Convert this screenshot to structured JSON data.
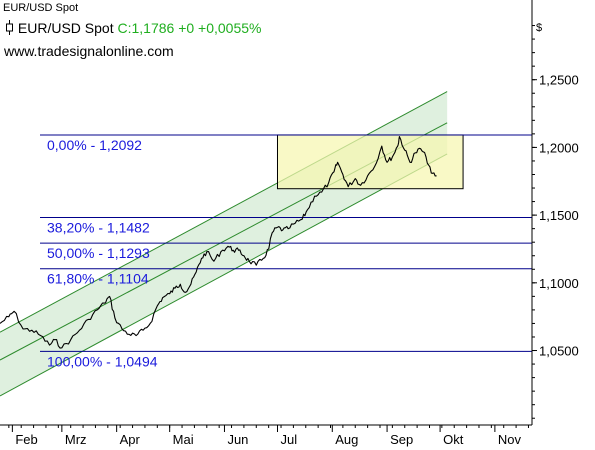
{
  "window_title": "EUR/USD Spot",
  "symbol": {
    "name": "EUR/USD Spot",
    "quote": "C:1,1786 +0 +0,0055%",
    "icon": "price-marker-icon"
  },
  "site": "www.tradesignalonline.com",
  "currency_symbol": "$",
  "colors": {
    "price_line": "#000000",
    "fib_line": "#00008b",
    "fib_label": "#1a1adc",
    "channel_line": "#2e8b2e",
    "channel_fill": "#d4ebd4",
    "box_fill": "#f7f7b0",
    "box_border": "#000000",
    "quote_green": "#1fae1f",
    "axis": "#000000"
  },
  "chart_data": {
    "type": "line",
    "title": "EUR/USD Spot",
    "x_ticks": [
      "Feb",
      "Mrz",
      "Apr",
      "Mai",
      "Jun",
      "Jul",
      "Aug",
      "Sep",
      "Okt",
      "Nov"
    ],
    "y_ticks": [
      "1,0500",
      "1,1000",
      "1,1500",
      "1,2000",
      "1,2500"
    ],
    "y_tick_values": [
      1.05,
      1.1,
      1.15,
      1.2,
      1.25
    ],
    "ylim": [
      0.995,
      1.3
    ],
    "x_range": [
      "2017-01-25",
      "2017-11-22"
    ],
    "series": [
      {
        "values": [
          {
            "x": "2017-01-25",
            "y": 1.07
          },
          {
            "x": "2017-01-30",
            "y": 1.075
          },
          {
            "x": "2017-02-02",
            "y": 1.079
          },
          {
            "x": "2017-02-07",
            "y": 1.066
          },
          {
            "x": "2017-02-12",
            "y": 1.065
          },
          {
            "x": "2017-02-17",
            "y": 1.061
          },
          {
            "x": "2017-02-22",
            "y": 1.054
          },
          {
            "x": "2017-02-25",
            "y": 1.058
          },
          {
            "x": "2017-03-01",
            "y": 1.052
          },
          {
            "x": "2017-03-06",
            "y": 1.058
          },
          {
            "x": "2017-03-11",
            "y": 1.065
          },
          {
            "x": "2017-03-16",
            "y": 1.073
          },
          {
            "x": "2017-03-21",
            "y": 1.08
          },
          {
            "x": "2017-03-25",
            "y": 1.085
          },
          {
            "x": "2017-03-28",
            "y": 1.09
          },
          {
            "x": "2017-03-31",
            "y": 1.074
          },
          {
            "x": "2017-04-04",
            "y": 1.066
          },
          {
            "x": "2017-04-08",
            "y": 1.062
          },
          {
            "x": "2017-04-12",
            "y": 1.061
          },
          {
            "x": "2017-04-16",
            "y": 1.065
          },
          {
            "x": "2017-04-20",
            "y": 1.07
          },
          {
            "x": "2017-04-24",
            "y": 1.083
          },
          {
            "x": "2017-04-27",
            "y": 1.089
          },
          {
            "x": "2017-05-01",
            "y": 1.092
          },
          {
            "x": "2017-05-04",
            "y": 1.096
          },
          {
            "x": "2017-05-07",
            "y": 1.099
          },
          {
            "x": "2017-05-10",
            "y": 1.093
          },
          {
            "x": "2017-05-13",
            "y": 1.099
          },
          {
            "x": "2017-05-16",
            "y": 1.108
          },
          {
            "x": "2017-05-19",
            "y": 1.118
          },
          {
            "x": "2017-05-22",
            "y": 1.123
          },
          {
            "x": "2017-05-26",
            "y": 1.116
          },
          {
            "x": "2017-05-30",
            "y": 1.123
          },
          {
            "x": "2017-06-03",
            "y": 1.127
          },
          {
            "x": "2017-06-06",
            "y": 1.124
          },
          {
            "x": "2017-06-09",
            "y": 1.124
          },
          {
            "x": "2017-06-12",
            "y": 1.12
          },
          {
            "x": "2017-06-15",
            "y": 1.116
          },
          {
            "x": "2017-06-19",
            "y": 1.113
          },
          {
            "x": "2017-06-23",
            "y": 1.118
          },
          {
            "x": "2017-06-26",
            "y": 1.125
          },
          {
            "x": "2017-06-28",
            "y": 1.137
          },
          {
            "x": "2017-07-01",
            "y": 1.141
          },
          {
            "x": "2017-07-04",
            "y": 1.139
          },
          {
            "x": "2017-07-07",
            "y": 1.14
          },
          {
            "x": "2017-07-11",
            "y": 1.144
          },
          {
            "x": "2017-07-15",
            "y": 1.147
          },
          {
            "x": "2017-07-18",
            "y": 1.154
          },
          {
            "x": "2017-07-22",
            "y": 1.164
          },
          {
            "x": "2017-07-26",
            "y": 1.167
          },
          {
            "x": "2017-07-30",
            "y": 1.174
          },
          {
            "x": "2017-08-02",
            "y": 1.182
          },
          {
            "x": "2017-08-04",
            "y": 1.189
          },
          {
            "x": "2017-08-07",
            "y": 1.18
          },
          {
            "x": "2017-08-10",
            "y": 1.171
          },
          {
            "x": "2017-08-14",
            "y": 1.177
          },
          {
            "x": "2017-08-17",
            "y": 1.172
          },
          {
            "x": "2017-08-21",
            "y": 1.179
          },
          {
            "x": "2017-08-25",
            "y": 1.186
          },
          {
            "x": "2017-08-29",
            "y": 1.201
          },
          {
            "x": "2017-09-01",
            "y": 1.189
          },
          {
            "x": "2017-09-04",
            "y": 1.193
          },
          {
            "x": "2017-09-07",
            "y": 1.201
          },
          {
            "x": "2017-09-08",
            "y": 1.208
          },
          {
            "x": "2017-09-11",
            "y": 1.198
          },
          {
            "x": "2017-09-14",
            "y": 1.189
          },
          {
            "x": "2017-09-17",
            "y": 1.196
          },
          {
            "x": "2017-09-20",
            "y": 1.199
          },
          {
            "x": "2017-09-23",
            "y": 1.193
          },
          {
            "x": "2017-09-26",
            "y": 1.181
          },
          {
            "x": "2017-09-29",
            "y": 1.179
          }
        ]
      }
    ],
    "fibonacci_levels": [
      {
        "label": "0,00% - 1,2092",
        "value": 1.2092
      },
      {
        "label": "38,20% - 1,1482",
        "value": 1.1482
      },
      {
        "label": "50,00% - 1,1293",
        "value": 1.1293
      },
      {
        "label": "61,80% - 1,1104",
        "value": 1.1104
      },
      {
        "label": "100,00% - 1,0494",
        "value": 1.0494
      }
    ],
    "channel": {
      "start": "2017-01-25",
      "end": "2017-10-05",
      "upper": [
        1.0635,
        1.2412
      ],
      "middle": [
        1.043,
        1.2182
      ],
      "lower": [
        1.0165,
        1.1952
      ]
    },
    "box": {
      "x_start": "2017-07-01",
      "x_end": "2017-10-14",
      "y_top": 1.2092,
      "y_bottom": 1.1695
    },
    "grid": false,
    "legend": "none"
  }
}
